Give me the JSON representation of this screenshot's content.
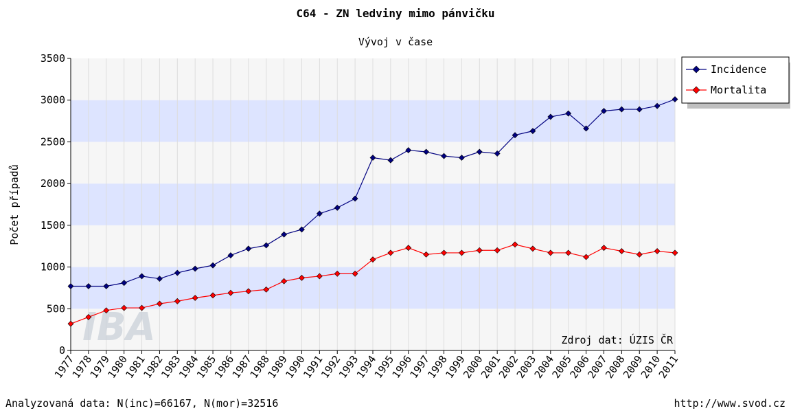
{
  "chart_data": {
    "type": "line",
    "title": "C64 - ZN ledviny mimo pánvičku",
    "subtitle": "Vývoj v čase",
    "y_label": "Počet případů",
    "annotation": "Zdroj dat: ÚZIS ČR",
    "watermark": "IBA",
    "footer_left": "Analyzovaná data: N(inc)=66167, N(mor)=32516",
    "footer_right": "http://www.svod.cz",
    "categories": [
      "1977",
      "1978",
      "1979",
      "1980",
      "1981",
      "1982",
      "1983",
      "1984",
      "1985",
      "1986",
      "1987",
      "1988",
      "1989",
      "1990",
      "1991",
      "1992",
      "1993",
      "1994",
      "1995",
      "1996",
      "1997",
      "1998",
      "1999",
      "2000",
      "2001",
      "2002",
      "2003",
      "2004",
      "2005",
      "2006",
      "2007",
      "2008",
      "2009",
      "2010",
      "2011"
    ],
    "series": [
      {
        "name": "Incidence",
        "color": "#000080",
        "values": [
          770,
          770,
          770,
          810,
          890,
          860,
          930,
          980,
          1020,
          1140,
          1220,
          1260,
          1390,
          1450,
          1640,
          1710,
          1820,
          2310,
          2280,
          2400,
          2380,
          2330,
          2310,
          2380,
          2360,
          2580,
          2630,
          2800,
          2840,
          2660,
          2870,
          2890,
          2890,
          2930,
          3010
        ]
      },
      {
        "name": "Mortalita",
        "color": "#ff0000",
        "values": [
          320,
          400,
          480,
          510,
          510,
          560,
          590,
          630,
          660,
          690,
          710,
          730,
          830,
          870,
          890,
          920,
          920,
          1090,
          1170,
          1230,
          1150,
          1170,
          1170,
          1200,
          1200,
          1270,
          1220,
          1170,
          1170,
          1120,
          1230,
          1190,
          1150,
          1190,
          1170
        ]
      }
    ],
    "ylim": [
      0,
      3500
    ],
    "yticks": [
      0,
      500,
      1000,
      1500,
      2000,
      2500,
      3000,
      3500
    ],
    "grid": true,
    "legend": "right"
  }
}
